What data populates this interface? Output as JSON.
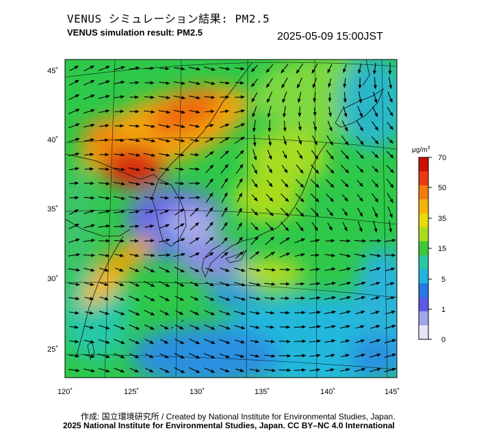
{
  "title_jp": "VENUS シミュレーション結果: PM2.5",
  "title_en": "VENUS simulation result: PM2.5",
  "timestamp": "2025-05-09 15:00JST",
  "map": {
    "lon_labels": [
      "120˚",
      "125˚",
      "130˚",
      "135˚",
      "140˚",
      "145˚"
    ],
    "lat_labels": [
      "45˚",
      "40˚",
      "35˚",
      "30˚",
      "25˚"
    ]
  },
  "colorbar": {
    "unit_label": "μg/m",
    "unit_superscript": "3",
    "tick_labels": [
      "70",
      "50",
      "35",
      "15",
      "5",
      "1",
      "0"
    ],
    "colors": [
      "#cc1100",
      "#e83a10",
      "#f57a10",
      "#f2b40c",
      "#e8d80e",
      "#a8dc1c",
      "#3ec83a",
      "#28c8a0",
      "#22b4e0",
      "#2878e6",
      "#5a5ae6",
      "#a0a4ea",
      "#e6e6f8"
    ]
  },
  "credits": {
    "line1": "作成: 国立環境研究所 / Created by National Institute for Environmental Studies, Japan.",
    "line2": "2025 National Institute for Environmental Studies, Japan. CC BY–NC 4.0 International"
  }
}
